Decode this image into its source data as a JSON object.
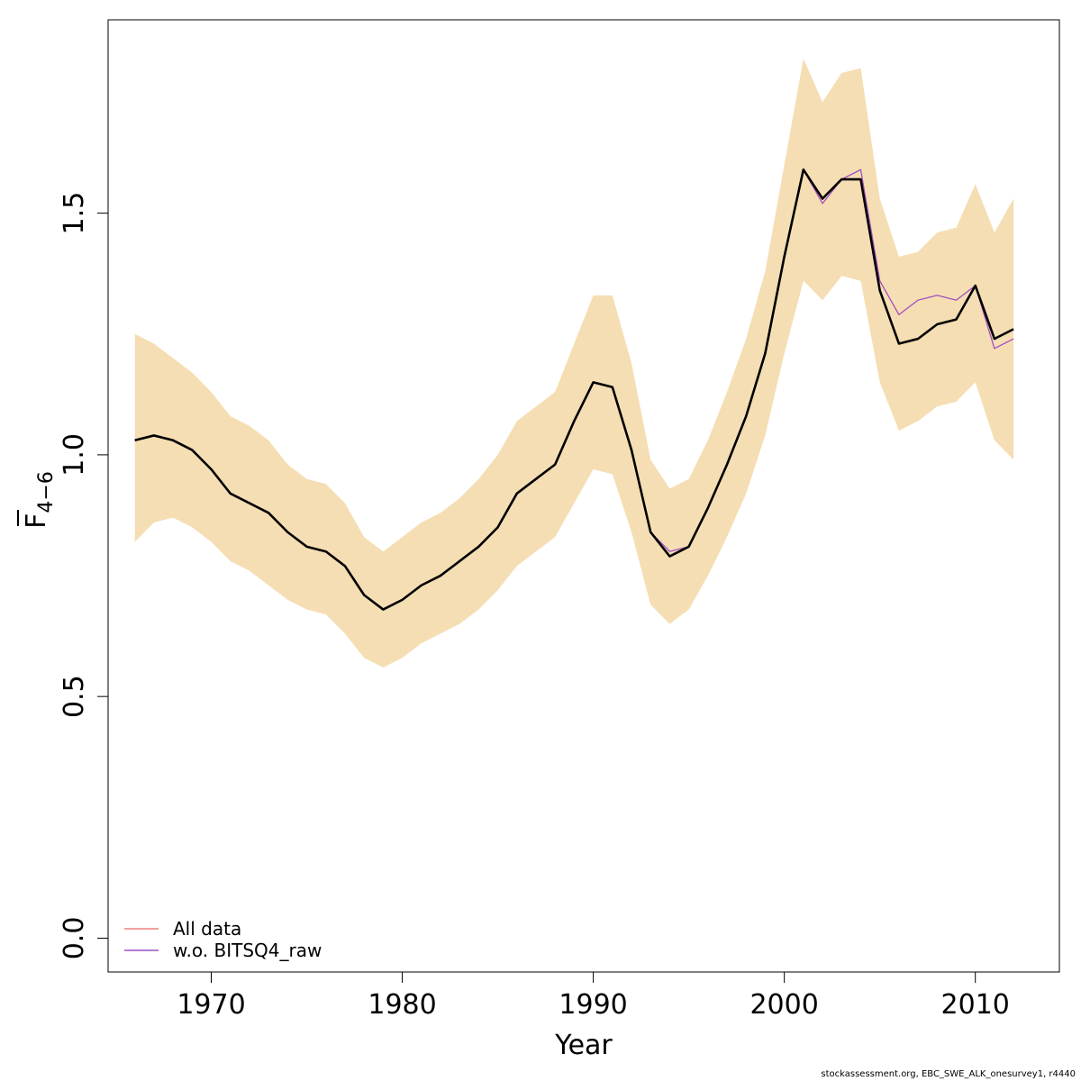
{
  "chart_data": {
    "type": "line",
    "xlabel": "Year",
    "ylabel": {
      "main": "F",
      "sub": "4−6"
    },
    "xlim": [
      1964.6,
      2014.4
    ],
    "ylim": [
      -0.07,
      1.9
    ],
    "x_ticks": [
      1970,
      1980,
      1990,
      2000,
      2010
    ],
    "y_ticks": [
      0.0,
      0.5,
      1.0,
      1.5
    ],
    "x_tick_labels": [
      "1970",
      "1980",
      "1990",
      "2000",
      "2010"
    ],
    "y_tick_labels": [
      "0.0",
      "0.5",
      "1.0",
      "1.5"
    ],
    "grid": false,
    "legend_position": "bottom-left",
    "colors": {
      "ribbon": "#F5DEB3",
      "main_line": "#000000",
      "all_data": "#F08080",
      "wo_bitsq4": "#9B4FC8"
    },
    "x": [
      1966,
      1967,
      1968,
      1969,
      1970,
      1971,
      1972,
      1973,
      1974,
      1975,
      1976,
      1977,
      1978,
      1979,
      1980,
      1981,
      1982,
      1983,
      1984,
      1985,
      1986,
      1987,
      1988,
      1989,
      1990,
      1991,
      1992,
      1993,
      1994,
      1995,
      1996,
      1997,
      1998,
      1999,
      2000,
      2001,
      2002,
      2003,
      2004,
      2005,
      2006,
      2007,
      2008,
      2009,
      2010,
      2011,
      2012
    ],
    "band_upper": [
      1.25,
      1.23,
      1.2,
      1.17,
      1.13,
      1.08,
      1.06,
      1.03,
      0.98,
      0.95,
      0.94,
      0.9,
      0.83,
      0.8,
      0.83,
      0.86,
      0.88,
      0.91,
      0.95,
      1.0,
      1.07,
      1.1,
      1.13,
      1.23,
      1.33,
      1.33,
      1.19,
      0.99,
      0.93,
      0.95,
      1.03,
      1.13,
      1.24,
      1.38,
      1.6,
      1.82,
      1.73,
      1.79,
      1.8,
      1.53,
      1.41,
      1.42,
      1.46,
      1.47,
      1.56,
      1.46,
      1.53
    ],
    "band_lower": [
      0.82,
      0.86,
      0.87,
      0.85,
      0.82,
      0.78,
      0.76,
      0.73,
      0.7,
      0.68,
      0.67,
      0.63,
      0.58,
      0.56,
      0.58,
      0.61,
      0.63,
      0.65,
      0.68,
      0.72,
      0.77,
      0.8,
      0.83,
      0.9,
      0.97,
      0.96,
      0.84,
      0.69,
      0.65,
      0.68,
      0.75,
      0.83,
      0.92,
      1.04,
      1.21,
      1.36,
      1.32,
      1.37,
      1.36,
      1.15,
      1.05,
      1.07,
      1.1,
      1.11,
      1.15,
      1.03,
      0.99
    ],
    "series": [
      {
        "name": "All data",
        "values": [
          1.03,
          1.04,
          1.03,
          1.01,
          0.97,
          0.92,
          0.9,
          0.88,
          0.84,
          0.81,
          0.8,
          0.77,
          0.71,
          0.68,
          0.7,
          0.73,
          0.75,
          0.78,
          0.81,
          0.85,
          0.92,
          0.95,
          0.98,
          1.07,
          1.15,
          1.14,
          1.01,
          0.84,
          0.8,
          0.81,
          0.89,
          0.98,
          1.08,
          1.21,
          1.41,
          1.59,
          1.52,
          1.57,
          1.59,
          1.36,
          1.29,
          1.32,
          1.33,
          1.32,
          1.35,
          1.22,
          1.24
        ]
      },
      {
        "name": "w.o. BITSQ4_raw",
        "values": [
          1.03,
          1.04,
          1.03,
          1.01,
          0.97,
          0.92,
          0.9,
          0.88,
          0.84,
          0.81,
          0.8,
          0.77,
          0.71,
          0.68,
          0.7,
          0.73,
          0.75,
          0.78,
          0.81,
          0.85,
          0.92,
          0.95,
          0.98,
          1.07,
          1.15,
          1.14,
          1.01,
          0.84,
          0.8,
          0.81,
          0.89,
          0.98,
          1.08,
          1.21,
          1.41,
          1.59,
          1.52,
          1.57,
          1.59,
          1.36,
          1.29,
          1.32,
          1.33,
          1.32,
          1.35,
          1.22,
          1.24
        ]
      },
      {
        "values": [
          1.03,
          1.04,
          1.03,
          1.01,
          0.97,
          0.92,
          0.9,
          0.88,
          0.84,
          0.81,
          0.8,
          0.77,
          0.71,
          0.68,
          0.7,
          0.73,
          0.75,
          0.78,
          0.81,
          0.85,
          0.92,
          0.95,
          0.98,
          1.07,
          1.15,
          1.14,
          1.01,
          0.84,
          0.79,
          0.81,
          0.89,
          0.98,
          1.08,
          1.21,
          1.41,
          1.59,
          1.53,
          1.57,
          1.57,
          1.34,
          1.23,
          1.24,
          1.27,
          1.28,
          1.35,
          1.24,
          1.26
        ]
      }
    ]
  },
  "legend": {
    "items": [
      {
        "label": "All data"
      },
      {
        "label": "w.o. BITSQ4_raw"
      }
    ]
  },
  "footer": "stockassessment.org, EBC_SWE_ALK_onesurvey1, r4440"
}
